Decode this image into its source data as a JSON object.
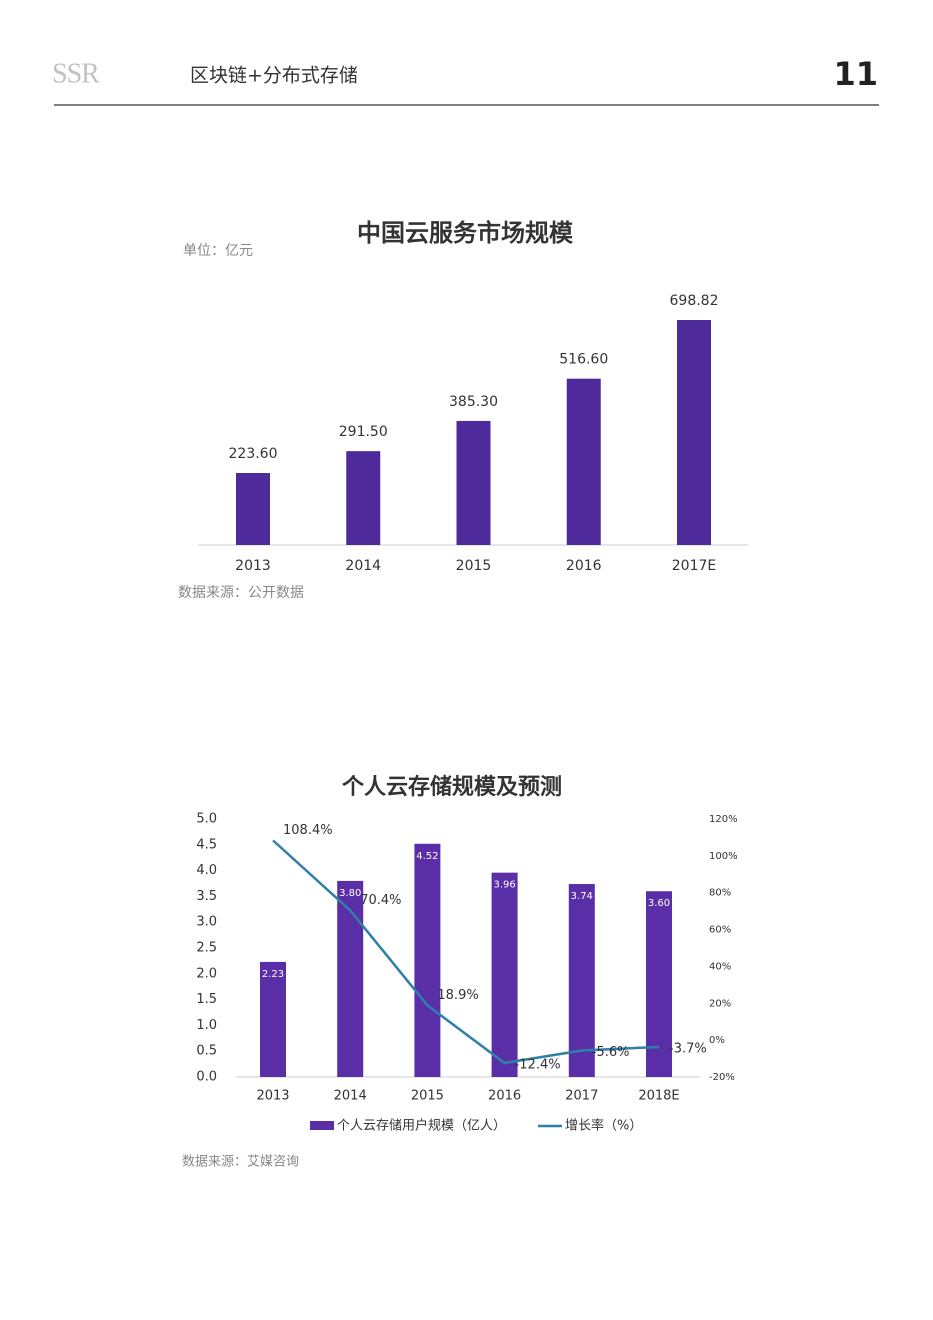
{
  "header": {
    "logo": "SSR",
    "title": "区块链+分布式存储",
    "page": "11"
  },
  "chart_data": [
    {
      "type": "bar",
      "title": "中国云服务市场规模",
      "unit": "单位：亿元",
      "categories": [
        "2013",
        "2014",
        "2015",
        "2016",
        "2017E"
      ],
      "values": [
        223.6,
        291.5,
        385.3,
        516.6,
        698.82
      ],
      "value_labels": [
        "223.60",
        "291.50",
        "385.30",
        "516.60",
        "698.82"
      ],
      "color": "#4f2a9a",
      "source": "数据来源：公开数据"
    },
    {
      "type": "combo",
      "title": "个人云存储规模及预测",
      "categories": [
        "2013",
        "2014",
        "2015",
        "2016",
        "2017",
        "2018E"
      ],
      "series": [
        {
          "name": "个人云存储用户规模（亿人）",
          "color": "#5a2ea6",
          "values": [
            2.23,
            3.8,
            4.52,
            3.96,
            3.74,
            3.6
          ],
          "value_labels": [
            "2.23",
            "3.80",
            "4.52",
            "3.96",
            "3.74",
            "3.60"
          ]
        },
        {
          "name": "增长率（%）",
          "color": "#2f7fa8",
          "axis": "y2",
          "values": [
            108.4,
            70.4,
            18.9,
            -12.4,
            -5.6,
            -3.7
          ],
          "value_labels": [
            "108.4%",
            "70.4%",
            "18.9%",
            "-12.4%",
            "-5.6%",
            "-3.7%"
          ]
        }
      ],
      "ylim": [
        0,
        5
      ],
      "yticks": [
        {
          "value": 0,
          "label": "0.0"
        },
        0.5,
        {
          "value": 1,
          "label": "1.0"
        },
        1.5,
        {
          "value": 2,
          "label": "2.0"
        },
        2.5,
        {
          "value": 3,
          "label": "3.0"
        },
        3.5,
        {
          "value": 4,
          "label": "4.0"
        },
        4.5,
        {
          "value": 5,
          "label": "5.0"
        }
      ],
      "y2lim": [
        -20,
        120
      ],
      "y2ticks": [
        {
          "value": -20,
          "label": "-20%"
        },
        {
          "value": 0,
          "label": "0%"
        },
        {
          "value": 20,
          "label": "20%"
        },
        {
          "value": 40,
          "label": "40%"
        },
        {
          "value": 60,
          "label": "60%"
        },
        {
          "value": 80,
          "label": "80%"
        },
        {
          "value": 100,
          "label": "100%"
        },
        {
          "value": 120,
          "label": "120%"
        }
      ],
      "source": "数据来源：艾媒咨询"
    }
  ]
}
